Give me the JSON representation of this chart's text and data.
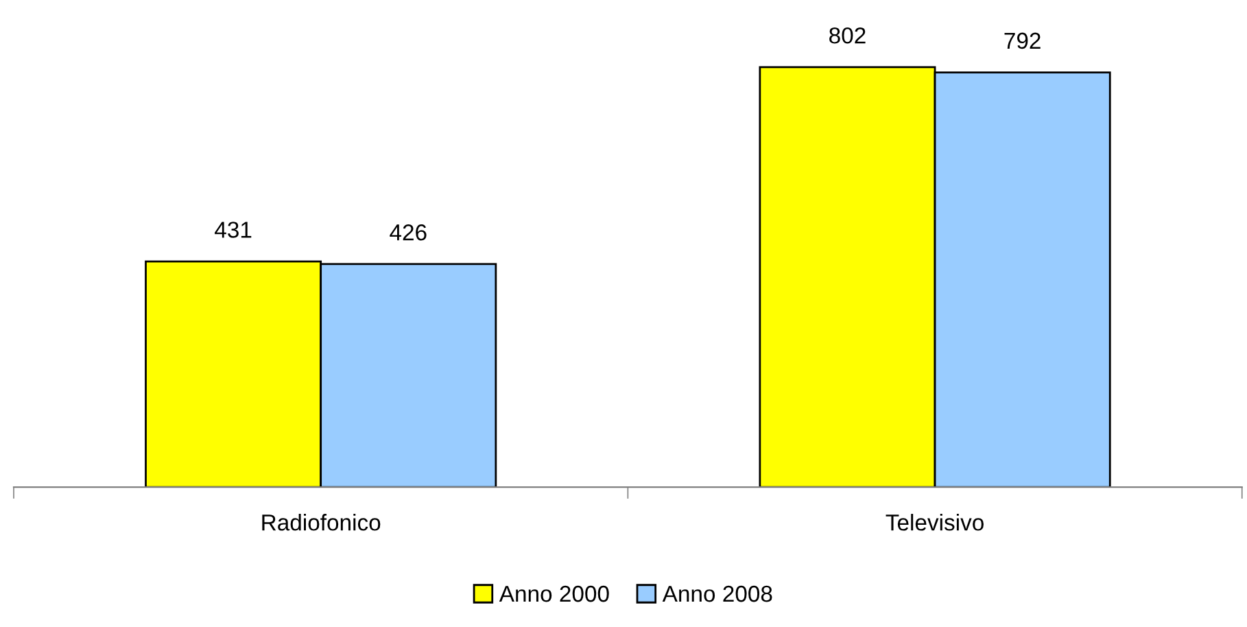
{
  "chart_data": {
    "type": "bar",
    "categories": [
      "Radiofonico",
      "Televisivo"
    ],
    "series": [
      {
        "name": "Anno 2000",
        "color": "#ffff00",
        "values": [
          431,
          802
        ]
      },
      {
        "name": "Anno 2008",
        "color": "#99ccff",
        "values": [
          426,
          792
        ]
      }
    ],
    "data_labels": true,
    "legend": "bottom",
    "grid": false
  }
}
